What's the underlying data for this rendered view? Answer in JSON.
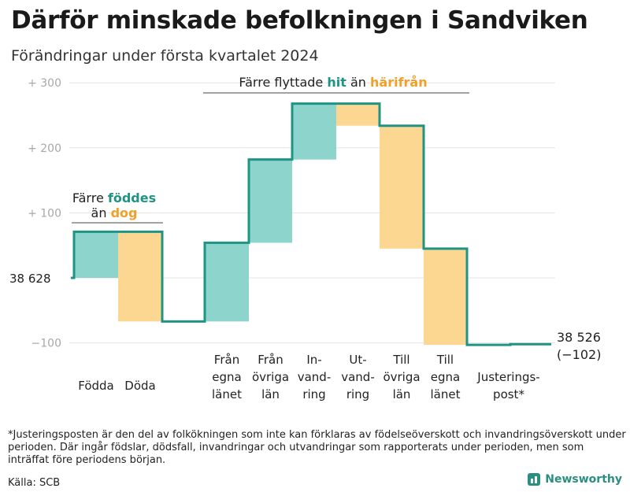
{
  "title": "Därför minskade befolkningen i Sandviken",
  "subtitle": "Förändringar under första kvartalet 2024",
  "colors": {
    "positive": "#8dd5cc",
    "negative": "#fcd791",
    "line": "#1f9484",
    "orange_text": "#f0a12a",
    "grid": "#e3e3e3"
  },
  "chart_data": {
    "type": "waterfall",
    "ylim": [
      -110,
      310
    ],
    "y_ticks": [
      {
        "value": 300,
        "label": "+ 300"
      },
      {
        "value": 200,
        "label": "+ 200"
      },
      {
        "value": 100,
        "label": "+ 100"
      },
      {
        "value": 0,
        "label": "38 628"
      },
      {
        "value": -100,
        "label": "−100"
      }
    ],
    "start_label": "38  628",
    "steps": [
      {
        "label_lines": [
          "Födda"
        ],
        "change": 71,
        "kind": "pos"
      },
      {
        "label_lines": [
          "Döda"
        ],
        "change": -138,
        "kind": "neg"
      },
      {
        "label_lines": [
          "Från",
          "egna",
          "länet"
        ],
        "change": 121,
        "kind": "pos"
      },
      {
        "label_lines": [
          "Från",
          "övriga",
          "län"
        ],
        "change": 128,
        "kind": "pos"
      },
      {
        "label_lines": [
          "In-",
          "vand-",
          "ring"
        ],
        "change": 86,
        "kind": "pos"
      },
      {
        "label_lines": [
          "Ut-",
          "vand-",
          "ring"
        ],
        "change": -34,
        "kind": "neg"
      },
      {
        "label_lines": [
          "Till",
          "övriga",
          "län"
        ],
        "change": -189,
        "kind": "neg"
      },
      {
        "label_lines": [
          "Till",
          "egna",
          "länet"
        ],
        "change": -148,
        "kind": "neg"
      },
      {
        "label_lines": [
          "Justerings-",
          "post*"
        ],
        "change": 1,
        "kind": "adj"
      }
    ],
    "end_value_label": "38 526",
    "end_change_label": "(−102)",
    "annotations": {
      "births": {
        "line1_prefix": "Färre ",
        "line1_highlight": "föddes",
        "line2_prefix": "än ",
        "line2_highlight": "dog"
      },
      "migration": {
        "prefix": "Färre flyttade ",
        "highlight1": "hit",
        "middle": " än ",
        "highlight2": "härifrån"
      }
    }
  },
  "footnote": "*Justeringsposten är den del av folkökningen som inte kan förklaras av födelseöverskott och invandringsöverskott under perioden. Där ingår födslar, dödsfall, invandringar och utvandringar som rapporterats under perioden, men som inträffat före periodens början.",
  "source": "Källa: SCB",
  "brand": "Newsworthy"
}
